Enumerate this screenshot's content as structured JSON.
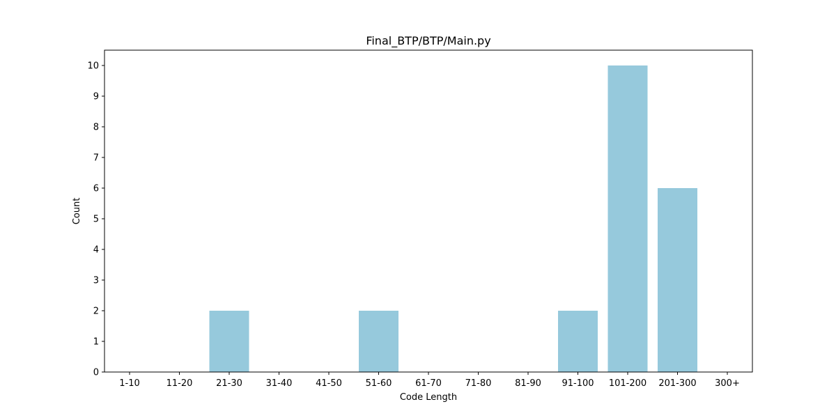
{
  "chart_data": {
    "type": "bar",
    "title": "Final_BTP/BTP/Main.py",
    "xlabel": "Code Length",
    "ylabel": "Count",
    "categories": [
      "1-10",
      "11-20",
      "21-30",
      "31-40",
      "41-50",
      "51-60",
      "61-70",
      "71-80",
      "81-90",
      "91-100",
      "101-200",
      "201-300",
      "300+"
    ],
    "values": [
      0,
      0,
      2,
      0,
      0,
      2,
      0,
      0,
      0,
      2,
      10,
      6,
      0
    ],
    "ylim": [
      0,
      10.5
    ],
    "yticks": [
      0,
      1,
      2,
      3,
      4,
      5,
      6,
      7,
      8,
      9,
      10
    ],
    "bar_color": "#96c9dc",
    "grid": false,
    "legend": "none"
  }
}
